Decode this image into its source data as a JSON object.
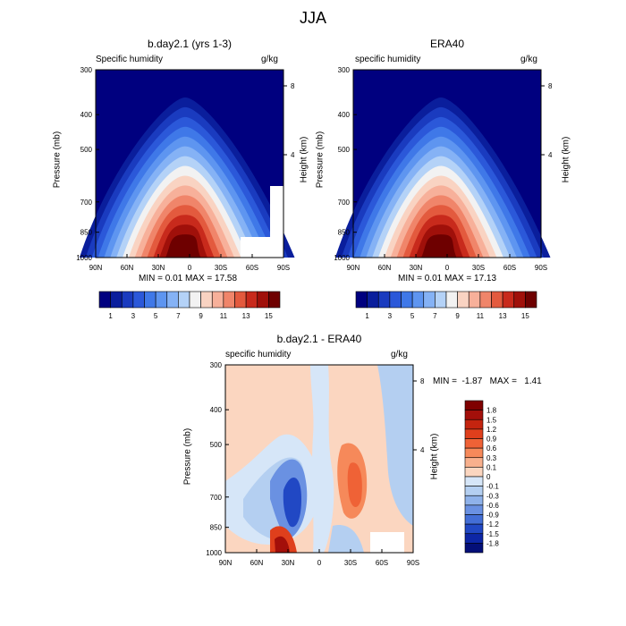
{
  "figure": {
    "title": "JJA"
  },
  "panels": [
    {
      "id": "model",
      "title": "b.day2.1 (yrs 1-3)",
      "left_label": "Specific humidity",
      "right_label": "g/kg",
      "ylabel": "Pressure (mb)",
      "ylabel_right": "Height (km)",
      "stats": "MIN =   0.01   MAX =  17.58"
    },
    {
      "id": "obs",
      "title": "ERA40",
      "left_label": "specific humidity",
      "right_label": "g/kg",
      "ylabel": "Pressure (mb)",
      "ylabel_right": "Height (km)",
      "stats": "MIN =   0.01   MAX =  17.13"
    },
    {
      "id": "diff",
      "title": "b.day2.1 - ERA40",
      "left_label": "specific humidity",
      "right_label": "g/kg",
      "ylabel": "Pressure (mb)",
      "ylabel_right": "Height (km)",
      "stats": "MIN =  -1.87   MAX =   1.41"
    }
  ],
  "chart_data": {
    "type": "heatmap",
    "x_ticks": [
      "90N",
      "60N",
      "30N",
      "0",
      "30S",
      "60S",
      "90S"
    ],
    "y_ticks": [
      "300",
      "400",
      "500",
      "700",
      "850",
      "1000"
    ],
    "y_ticks_right": [
      "8",
      "4"
    ],
    "y_range_mb": [
      300,
      1000
    ],
    "colorbar_levels_full": [
      1,
      2,
      3,
      4,
      5,
      6,
      7,
      8,
      9,
      10,
      11,
      12,
      13,
      14,
      15
    ],
    "colorbar_labels_full": [
      "1",
      "3",
      "5",
      "7",
      "9",
      "11",
      "13",
      "15"
    ],
    "colorbar_colors_full": [
      "#00007f",
      "#0a1e9c",
      "#1a3bbf",
      "#2b58d9",
      "#3f78e8",
      "#5e95f0",
      "#85b2f5",
      "#b4d2f7",
      "#f2f2f2",
      "#f9d3c2",
      "#f7b09a",
      "#f0856a",
      "#e35a3e",
      "#c82a1c",
      "#a0100a",
      "#6e0000"
    ],
    "colorbar_labels_diff": [
      "1.8",
      "1.5",
      "1.2",
      "0.9",
      "0.6",
      "0.3",
      "0.1",
      "0",
      "-0.1",
      "-0.3",
      "-0.6",
      "-0.9",
      "-1.2",
      "-1.5",
      "-1.8"
    ],
    "colorbar_colors_diff": [
      "#7f0000",
      "#a30f0a",
      "#c4240f",
      "#df3f1c",
      "#ef6236",
      "#f6895a",
      "#f8b08d",
      "#fbd6c0",
      "#d6e6f8",
      "#b4cff1",
      "#8fb2ea",
      "#6a91e2",
      "#436ed6",
      "#2148c4",
      "#0d26a6",
      "#040f78"
    ],
    "model_levels": [
      {
        "level": 1,
        "pts": [
          [
            0,
            0.82
          ],
          [
            -40,
            0.7
          ],
          [
            -60,
            0.52
          ],
          [
            -75,
            0.55
          ],
          [
            -90,
            0.6
          ],
          [
            -90,
            1.0
          ],
          [
            90,
            1.0
          ],
          [
            90,
            0.2
          ],
          [
            70,
            0.35
          ],
          [
            45,
            0.42
          ],
          [
            25,
            0.48
          ],
          [
            10,
            0.6
          ],
          [
            -5,
            0.98
          ],
          [
            -20,
            0.78
          ]
        ]
      }
    ]
  }
}
